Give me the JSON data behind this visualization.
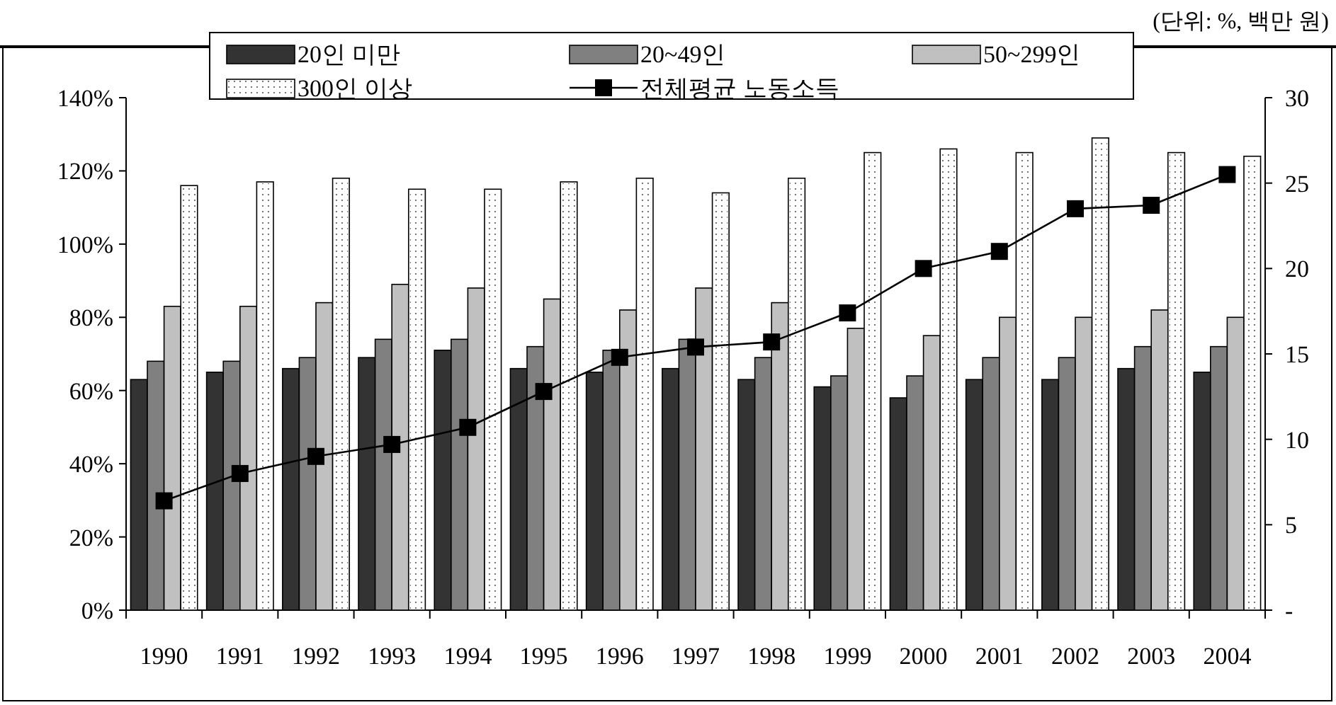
{
  "chart_data": {
    "type": "bar",
    "annotations": [
      "(단위: %, 백만 원)"
    ],
    "categories": [
      "1990",
      "1991",
      "1992",
      "1993",
      "1994",
      "1995",
      "1996",
      "1997",
      "1998",
      "1999",
      "2000",
      "2001",
      "2002",
      "2003",
      "2004"
    ],
    "series": [
      {
        "name": "20인 미만",
        "color": "#333333",
        "values": [
          63,
          65,
          66,
          69,
          71,
          66,
          65,
          66,
          63,
          61,
          58,
          63,
          63,
          66,
          65
        ]
      },
      {
        "name": "20~49인",
        "color": "#808080",
        "values": [
          68,
          68,
          69,
          74,
          74,
          72,
          71,
          74,
          69,
          64,
          64,
          69,
          69,
          72,
          72
        ]
      },
      {
        "name": "50~299인",
        "color": "#c0c0c0",
        "values": [
          83,
          83,
          84,
          89,
          88,
          85,
          82,
          88,
          84,
          77,
          75,
          80,
          80,
          82,
          80
        ]
      },
      {
        "name": "300인 이상",
        "color": "#ffffff",
        "values": [
          116,
          117,
          118,
          115,
          115,
          117,
          118,
          114,
          118,
          125,
          126,
          125,
          129,
          125,
          124
        ]
      },
      {
        "name": "전체평균 노동소득",
        "type": "line",
        "axis": "y2",
        "marker": "square",
        "color": "#000000",
        "values": [
          6.4,
          8.0,
          9.0,
          9.7,
          10.7,
          12.8,
          14.8,
          15.4,
          15.7,
          17.4,
          20.0,
          21.0,
          23.5,
          23.7,
          25.5
        ]
      }
    ],
    "ylim": [
      0,
      140
    ],
    "yticks": [
      {
        "value": 0,
        "label": "0%"
      },
      {
        "value": 20,
        "label": "20%"
      },
      {
        "value": 40,
        "label": "40%"
      },
      {
        "value": 60,
        "label": "60%"
      },
      {
        "value": 80,
        "label": "80%"
      },
      {
        "value": 100,
        "label": "100%"
      },
      {
        "value": 120,
        "label": "120%"
      },
      {
        "value": 140,
        "label": "140%"
      }
    ],
    "y2lim": [
      0,
      30
    ],
    "y2ticks": [
      {
        "value": 0,
        "label": "-"
      },
      5,
      10,
      15,
      20,
      25,
      30
    ],
    "legend": "top"
  }
}
